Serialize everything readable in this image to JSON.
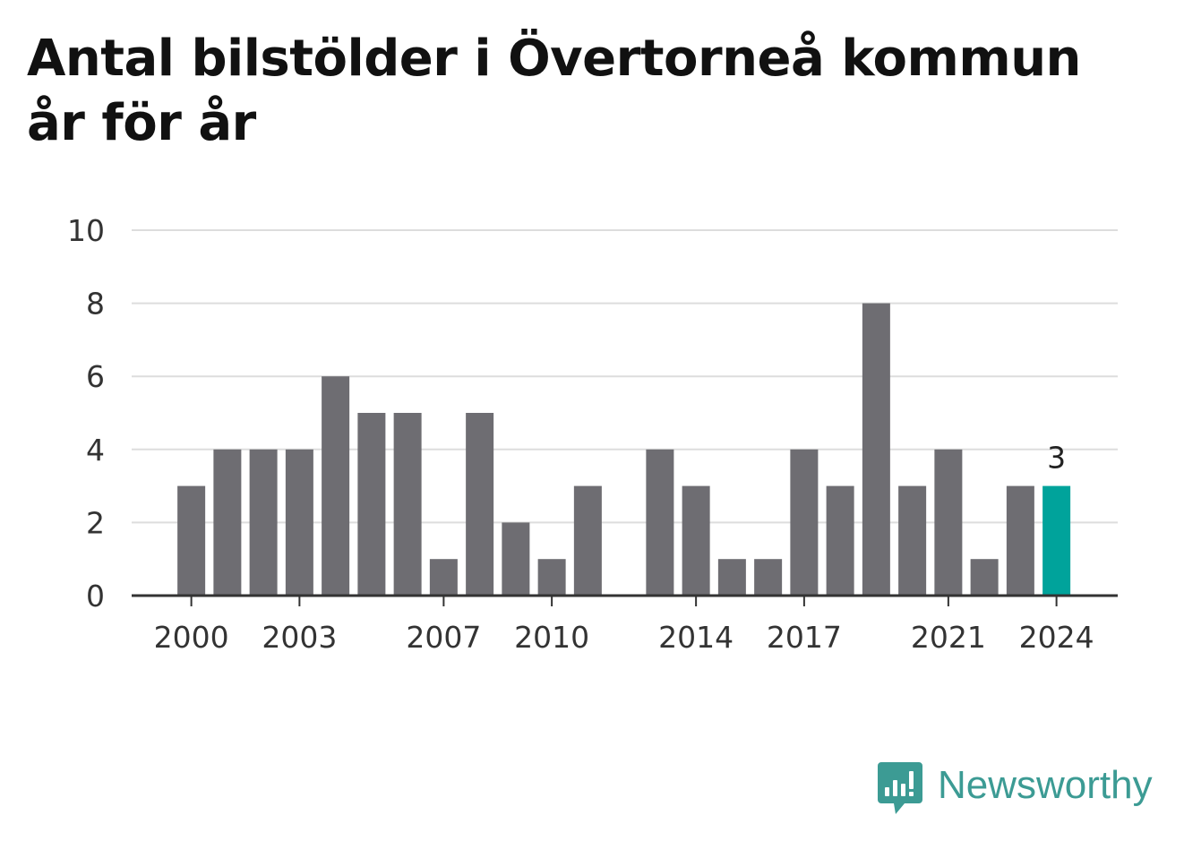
{
  "title": "Antal bilstölder i Övertorneå kommun år för år",
  "brand": {
    "name": "Newsworthy",
    "icon": "newsworthy-logo-icon",
    "color": "#3c9b94"
  },
  "chart_data": {
    "type": "bar",
    "title": "Antal bilstölder i Övertorneå kommun år för år",
    "xlabel": "",
    "ylabel": "",
    "ylim": [
      0,
      10
    ],
    "yticks": [
      0,
      2,
      4,
      6,
      8,
      10
    ],
    "xticks": [
      "2000",
      "2003",
      "2007",
      "2010",
      "2014",
      "2017",
      "2021",
      "2024"
    ],
    "categories": [
      "2000",
      "2001",
      "2002",
      "2003",
      "2004",
      "2005",
      "2006",
      "2007",
      "2008",
      "2009",
      "2010",
      "2011",
      "2012",
      "2013",
      "2014",
      "2015",
      "2016",
      "2017",
      "2018",
      "2019",
      "2020",
      "2021",
      "2022",
      "2023",
      "2024"
    ],
    "values": [
      3,
      4,
      4,
      4,
      6,
      5,
      5,
      1,
      5,
      2,
      1,
      3,
      0,
      4,
      3,
      1,
      1,
      4,
      3,
      8,
      3,
      4,
      1,
      3,
      3
    ],
    "highlight": {
      "category": "2024",
      "label": "3"
    },
    "colors": {
      "bar": "#6e6d72",
      "highlight": "#00a39b",
      "grid": "#dddddd",
      "axis": "#333333"
    },
    "grid": true,
    "legend": "none"
  }
}
